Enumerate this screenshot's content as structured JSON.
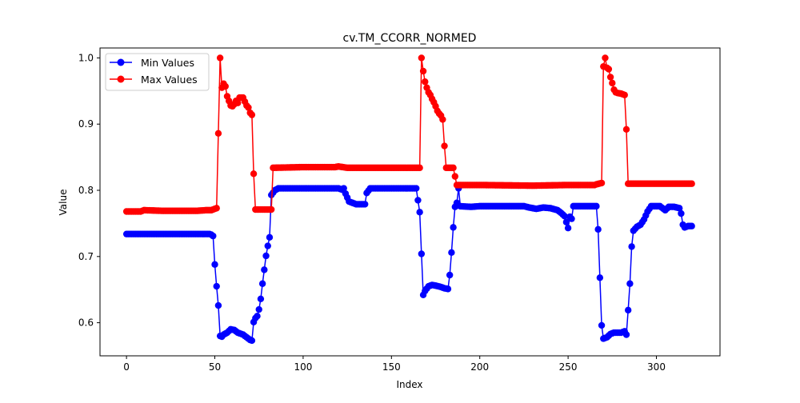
{
  "chart_data": {
    "type": "line",
    "title": "cv.TM_CCORR_NORMED",
    "xlabel": "Index",
    "ylabel": "Value",
    "xlim": [
      -15,
      336
    ],
    "ylim": [
      0.55,
      1.015
    ],
    "xticks": [
      0,
      50,
      100,
      150,
      200,
      250,
      300
    ],
    "yticks": [
      0.6,
      0.7,
      0.8,
      0.9,
      1.0
    ],
    "xtick_labels": [
      "0",
      "50",
      "100",
      "150",
      "200",
      "250",
      "300"
    ],
    "ytick_labels": [
      "0.6",
      "0.7",
      "0.8",
      "0.9",
      "1.0"
    ],
    "grid": false,
    "legend_position": "top-left",
    "series": [
      {
        "name": "Min Values",
        "color": "#0000ff",
        "segments": [
          [
            0,
            0.734
          ],
          [
            47,
            0.734
          ],
          [
            48,
            0.733
          ],
          [
            49,
            0.731
          ],
          [
            50,
            0.688
          ],
          [
            51,
            0.655
          ],
          [
            52,
            0.626
          ],
          [
            53,
            0.58
          ],
          [
            54,
            0.579
          ],
          [
            55,
            0.582
          ],
          [
            57,
            0.585
          ],
          [
            59,
            0.59
          ],
          [
            61,
            0.589
          ],
          [
            63,
            0.585
          ],
          [
            66,
            0.582
          ],
          [
            68,
            0.578
          ],
          [
            70,
            0.574
          ],
          [
            71,
            0.573
          ],
          [
            72,
            0.601
          ],
          [
            73,
            0.607
          ],
          [
            74,
            0.61
          ],
          [
            75,
            0.62
          ],
          [
            76,
            0.636
          ],
          [
            77,
            0.659
          ],
          [
            78,
            0.68
          ],
          [
            79,
            0.701
          ],
          [
            80,
            0.716
          ],
          [
            81,
            0.729
          ],
          [
            82,
            0.793
          ],
          [
            84,
            0.8
          ],
          [
            86,
            0.803
          ],
          [
            120,
            0.803
          ],
          [
            122,
            0.801
          ],
          [
            123,
            0.803
          ],
          [
            124,
            0.795
          ],
          [
            126,
            0.783
          ],
          [
            130,
            0.779
          ],
          [
            135,
            0.779
          ],
          [
            136,
            0.796
          ],
          [
            138,
            0.803
          ],
          [
            164,
            0.803
          ],
          [
            166,
            0.767
          ],
          [
            167,
            0.704
          ],
          [
            168,
            0.642
          ],
          [
            169,
            0.648
          ],
          [
            171,
            0.655
          ],
          [
            173,
            0.657
          ],
          [
            175,
            0.656
          ],
          [
            178,
            0.654
          ],
          [
            180,
            0.652
          ],
          [
            182,
            0.651
          ],
          [
            183,
            0.672
          ],
          [
            184,
            0.706
          ],
          [
            185,
            0.744
          ],
          [
            186,
            0.775
          ],
          [
            187,
            0.781
          ],
          [
            188,
            0.803
          ],
          [
            189,
            0.776
          ],
          [
            195,
            0.775
          ],
          [
            200,
            0.776
          ],
          [
            225,
            0.776
          ],
          [
            228,
            0.774
          ],
          [
            232,
            0.772
          ],
          [
            236,
            0.774
          ],
          [
            240,
            0.773
          ],
          [
            244,
            0.77
          ],
          [
            246,
            0.766
          ],
          [
            248,
            0.761
          ],
          [
            250,
            0.743
          ],
          [
            251,
            0.76
          ],
          [
            252,
            0.757
          ],
          [
            253,
            0.776
          ],
          [
            262,
            0.776
          ],
          [
            266,
            0.776
          ],
          [
            267,
            0.741
          ],
          [
            268,
            0.668
          ],
          [
            269,
            0.596
          ],
          [
            270,
            0.576
          ],
          [
            272,
            0.578
          ],
          [
            274,
            0.583
          ],
          [
            276,
            0.585
          ],
          [
            280,
            0.585
          ],
          [
            282,
            0.587
          ],
          [
            283,
            0.582
          ],
          [
            284,
            0.619
          ],
          [
            285,
            0.659
          ],
          [
            286,
            0.715
          ],
          [
            287,
            0.739
          ],
          [
            289,
            0.745
          ],
          [
            291,
            0.748
          ],
          [
            293,
            0.756
          ],
          [
            295,
            0.768
          ],
          [
            297,
            0.776
          ],
          [
            302,
            0.776
          ],
          [
            304,
            0.772
          ],
          [
            305,
            0.77
          ],
          [
            307,
            0.775
          ],
          [
            310,
            0.775
          ],
          [
            313,
            0.773
          ],
          [
            314,
            0.765
          ],
          [
            315,
            0.748
          ],
          [
            316,
            0.744
          ],
          [
            318,
            0.746
          ],
          [
            320,
            0.746
          ]
        ]
      },
      {
        "name": "Max Values",
        "color": "#ff0000",
        "segments": [
          [
            0,
            0.768
          ],
          [
            8,
            0.768
          ],
          [
            10,
            0.77
          ],
          [
            20,
            0.769
          ],
          [
            30,
            0.769
          ],
          [
            40,
            0.769
          ],
          [
            45,
            0.77
          ],
          [
            48,
            0.77
          ],
          [
            50,
            0.772
          ],
          [
            51,
            0.773
          ],
          [
            52,
            0.886
          ],
          [
            53,
            1.0
          ],
          [
            54,
            0.955
          ],
          [
            55,
            0.961
          ],
          [
            56,
            0.957
          ],
          [
            57,
            0.942
          ],
          [
            58,
            0.935
          ],
          [
            59,
            0.928
          ],
          [
            60,
            0.927
          ],
          [
            61,
            0.93
          ],
          [
            62,
            0.935
          ],
          [
            63,
            0.932
          ],
          [
            64,
            0.94
          ],
          [
            65,
            0.94
          ],
          [
            66,
            0.94
          ],
          [
            67,
            0.934
          ],
          [
            68,
            0.928
          ],
          [
            69,
            0.925
          ],
          [
            70,
            0.917
          ],
          [
            71,
            0.914
          ],
          [
            72,
            0.825
          ],
          [
            73,
            0.771
          ],
          [
            75,
            0.771
          ],
          [
            82,
            0.771
          ],
          [
            83,
            0.834
          ],
          [
            100,
            0.835
          ],
          [
            118,
            0.835
          ],
          [
            120,
            0.836
          ],
          [
            125,
            0.834
          ],
          [
            140,
            0.834
          ],
          [
            160,
            0.834
          ],
          [
            166,
            0.834
          ],
          [
            167,
            1.0
          ],
          [
            168,
            0.98
          ],
          [
            169,
            0.964
          ],
          [
            170,
            0.955
          ],
          [
            171,
            0.948
          ],
          [
            172,
            0.944
          ],
          [
            173,
            0.938
          ],
          [
            174,
            0.933
          ],
          [
            175,
            0.927
          ],
          [
            176,
            0.92
          ],
          [
            177,
            0.916
          ],
          [
            178,
            0.913
          ],
          [
            179,
            0.907
          ],
          [
            180,
            0.867
          ],
          [
            181,
            0.834
          ],
          [
            185,
            0.834
          ],
          [
            187,
            0.808
          ],
          [
            200,
            0.808
          ],
          [
            230,
            0.807
          ],
          [
            250,
            0.808
          ],
          [
            265,
            0.808
          ],
          [
            266,
            0.809
          ],
          [
            269,
            0.811
          ],
          [
            270,
            0.987
          ],
          [
            271,
            1.0
          ],
          [
            272,
            0.985
          ],
          [
            273,
            0.983
          ],
          [
            274,
            0.971
          ],
          [
            275,
            0.962
          ],
          [
            276,
            0.952
          ],
          [
            277,
            0.948
          ],
          [
            278,
            0.947
          ],
          [
            280,
            0.946
          ],
          [
            282,
            0.944
          ],
          [
            283,
            0.892
          ],
          [
            284,
            0.81
          ],
          [
            300,
            0.81
          ],
          [
            320,
            0.81
          ]
        ]
      }
    ]
  }
}
